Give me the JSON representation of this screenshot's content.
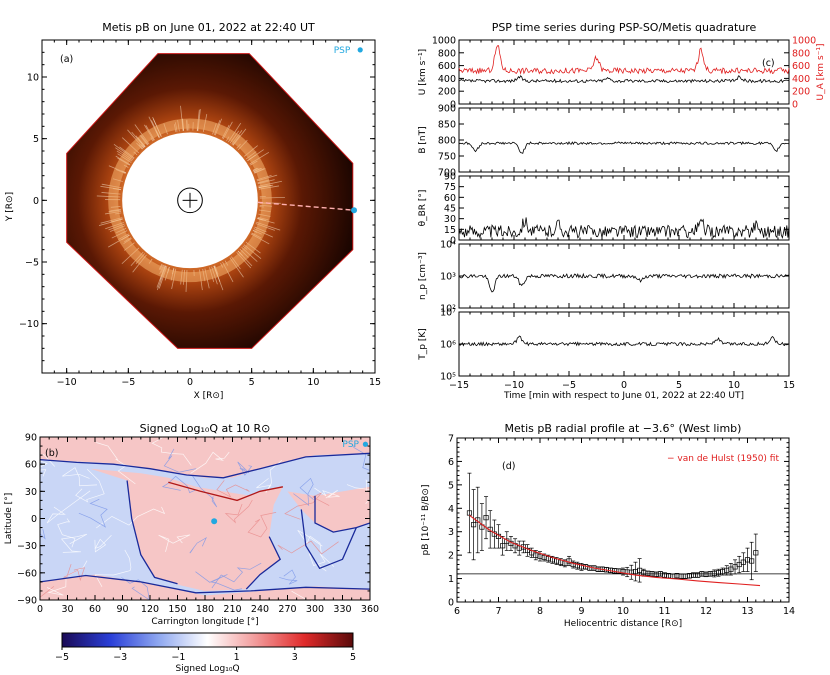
{
  "chart_data": [
    {
      "id": "a",
      "type": "image",
      "panel_label": "(a)",
      "title": "Metis pB on June 01, 2022 at 22:40 UT",
      "xlabel": "X [R⊙]",
      "ylabel": "Y [R⊙]",
      "xlim": [
        -12,
        15
      ],
      "ylim": [
        -14,
        13
      ],
      "xticks": [
        -10,
        -5,
        0,
        5,
        10,
        15
      ],
      "yticks": [
        -10,
        -5,
        0,
        5,
        10
      ],
      "marker_label": "PSP",
      "psp_position": [
        13.3,
        -0.8
      ],
      "occulter_radius": 5.5,
      "sun_radius": 1,
      "fov_polygon": [
        [
          -10.0,
          3.8
        ],
        [
          -2.6,
          11.9
        ],
        [
          4.8,
          11.9
        ],
        [
          13.2,
          3.0
        ],
        [
          13.2,
          -4.0
        ],
        [
          5.0,
          -12.0
        ],
        [
          -1.0,
          -12.0
        ],
        [
          -10.0,
          -3.4
        ]
      ]
    },
    {
      "id": "c",
      "type": "line",
      "panel_label": "(c)",
      "title": "PSP time series during PSP-SO/Metis quadrature",
      "xlabel": "Time [min with respect to June 01, 2022 at 22:40 UT]",
      "xlim": [
        -15,
        15
      ],
      "xticks": [
        -15,
        -10,
        -5,
        0,
        5,
        10,
        15
      ],
      "subplots": [
        {
          "name": "speed",
          "ylabel": "U [km s⁻¹]",
          "ylabel_right": "U_A [km s⁻¹]",
          "ylim": [
            0,
            1000
          ],
          "yticks": [
            0,
            200,
            400,
            600,
            800,
            1000
          ],
          "series": [
            {
              "name": "U",
              "color": "#000000",
              "base": 360,
              "noise": 25,
              "events": [
                [
                  -9.5,
                  60
                ],
                [
                  -1.5,
                  40
                ],
                [
                  10.5,
                  60
                ]
              ]
            },
            {
              "name": "U_A",
              "color": "#e02020",
              "base": 520,
              "noise": 45,
              "events": [
                [
                  -11.5,
                  380
                ],
                [
                  -2.5,
                  200
                ],
                [
                  7,
                  320
                ]
              ]
            }
          ]
        },
        {
          "name": "field",
          "ylabel": "B [nT]",
          "ylim": [
            700,
            900
          ],
          "yticks": [
            700,
            750,
            800,
            850,
            900
          ],
          "series": [
            {
              "name": "B",
              "color": "#000000",
              "base": 790,
              "noise": 4,
              "events": [
                [
                  -13.5,
                  -25
                ],
                [
                  -9.3,
                  -30
                ],
                [
                  13.8,
                  -25
                ]
              ]
            }
          ]
        },
        {
          "name": "angle",
          "ylabel": "θ_BR [°]",
          "ylim": [
            0,
            90
          ],
          "yticks": [
            0,
            15,
            30,
            45,
            60,
            75,
            90
          ],
          "series": [
            {
              "name": "theta_BR",
              "color": "#000000",
              "base": 12,
              "noise": 9,
              "events": [
                [
                  -9,
                  15
                ],
                [
                  -6,
                  10
                ],
                [
                  7,
                  12
                ],
                [
                  12,
                  10
                ]
              ]
            }
          ]
        },
        {
          "name": "density",
          "ylabel": "n_p [cm⁻³]",
          "log": true,
          "ylim": [
            100,
            10000
          ],
          "yticks": [
            100,
            1000,
            10000
          ],
          "tick_labels": [
            "10²",
            "10³",
            "10⁴"
          ],
          "series": [
            {
              "name": "n_p",
              "color": "#000000",
              "base": 1000,
              "noise": 0.06,
              "events": [
                [
                  -12,
                  -0.5
                ],
                [
                  -9.3,
                  -0.3
                ],
                [
                  1.5,
                  -0.15
                ]
              ]
            }
          ]
        },
        {
          "name": "temperature",
          "ylabel": "T_p [K]",
          "log": true,
          "ylim": [
            100000,
            10000000
          ],
          "yticks": [
            100000,
            1000000,
            10000000
          ],
          "tick_labels": [
            "10⁵",
            "10⁶",
            "10⁷"
          ],
          "series": [
            {
              "name": "T_p",
              "color": "#000000",
              "base": 1000000,
              "noise": 0.05,
              "events": [
                [
                  -9.5,
                  0.2
                ],
                [
                  8.5,
                  0.15
                ],
                [
                  13.5,
                  0.2
                ]
              ]
            }
          ]
        }
      ]
    },
    {
      "id": "b",
      "type": "heatmap",
      "panel_label": "(b)",
      "title": "Signed Log₁₀Q at 10 R⊙",
      "xlabel": "Carrington longitude [°]",
      "ylabel": "Latitude [°]",
      "xlim": [
        0,
        360
      ],
      "ylim": [
        -90,
        90
      ],
      "xticks": [
        0,
        30,
        60,
        90,
        120,
        150,
        180,
        210,
        240,
        270,
        300,
        330,
        360
      ],
      "yticks": [
        -90,
        -60,
        -30,
        0,
        30,
        60,
        90
      ],
      "marker_label": "PSP",
      "psp_position": [
        190,
        -3
      ],
      "colorbar": {
        "label": "Signed Log₁₀Q",
        "ticks": [
          -5,
          -3,
          -1,
          1,
          3,
          5
        ],
        "range": [
          -5,
          5
        ],
        "colors": [
          "#1a0a55",
          "#2a3fd8",
          "#8fa8f0",
          "#ffffff",
          "#f29a9a",
          "#e02a2a",
          "#5a0a0a"
        ]
      }
    },
    {
      "id": "d",
      "type": "scatter",
      "panel_label": "(d)",
      "title": "Metis pB radial profile at −3.6° (West limb)",
      "xlabel": "Heliocentric distance [R⊙]",
      "ylabel": "pB [10⁻¹¹ B/B⊙]",
      "xlim": [
        6,
        14
      ],
      "ylim": [
        0,
        7
      ],
      "xticks": [
        6,
        7,
        8,
        9,
        10,
        11,
        12,
        13,
        14
      ],
      "yticks": [
        0,
        1,
        2,
        3,
        4,
        5,
        6,
        7
      ],
      "legend": "− van de Hulst (1950) fit",
      "baseline": 1.2,
      "x": [
        6.3,
        6.4,
        6.5,
        6.6,
        6.7,
        6.8,
        6.9,
        7.0,
        7.1,
        7.2,
        7.3,
        7.4,
        7.5,
        7.6,
        7.7,
        7.8,
        7.9,
        8.0,
        8.1,
        8.2,
        8.3,
        8.4,
        8.5,
        8.6,
        8.7,
        8.8,
        8.9,
        9.0,
        9.1,
        9.2,
        9.3,
        9.4,
        9.5,
        9.6,
        9.7,
        9.8,
        9.9,
        10.0,
        10.1,
        10.2,
        10.3,
        10.4,
        10.5,
        10.6,
        10.7,
        10.8,
        10.9,
        11.0,
        11.1,
        11.2,
        11.3,
        11.4,
        11.5,
        11.6,
        11.7,
        11.8,
        11.9,
        12.0,
        12.1,
        12.2,
        12.3,
        12.4,
        12.5,
        12.6,
        12.7,
        12.8,
        12.9,
        13.0,
        13.1,
        13.2
      ],
      "y": [
        3.8,
        3.3,
        3.5,
        3.2,
        3.6,
        3.1,
        2.9,
        2.8,
        2.4,
        2.6,
        2.5,
        2.4,
        2.3,
        2.35,
        2.2,
        2.1,
        2.0,
        1.95,
        1.9,
        1.85,
        1.8,
        1.75,
        1.7,
        1.65,
        1.75,
        1.6,
        1.55,
        1.5,
        1.5,
        1.45,
        1.45,
        1.4,
        1.4,
        1.38,
        1.35,
        1.33,
        1.32,
        1.3,
        1.28,
        1.27,
        1.3,
        1.35,
        1.25,
        1.22,
        1.2,
        1.18,
        1.2,
        1.15,
        1.12,
        1.1,
        1.12,
        1.1,
        1.1,
        1.12,
        1.15,
        1.15,
        1.2,
        1.18,
        1.2,
        1.22,
        1.25,
        1.3,
        1.35,
        1.4,
        1.5,
        1.6,
        1.7,
        1.8,
        1.75,
        2.1
      ],
      "err": [
        1.7,
        1.5,
        1.4,
        1.0,
        0.9,
        0.8,
        0.6,
        0.5,
        0.4,
        0.4,
        0.3,
        0.3,
        0.3,
        0.25,
        0.25,
        0.2,
        0.2,
        0.2,
        0.15,
        0.15,
        0.15,
        0.15,
        0.15,
        0.15,
        0.2,
        0.15,
        0.15,
        0.15,
        0.1,
        0.1,
        0.1,
        0.1,
        0.1,
        0.1,
        0.1,
        0.1,
        0.1,
        0.15,
        0.2,
        0.3,
        0.4,
        0.5,
        0.15,
        0.1,
        0.1,
        0.1,
        0.1,
        0.1,
        0.1,
        0.1,
        0.1,
        0.1,
        0.1,
        0.1,
        0.1,
        0.1,
        0.1,
        0.1,
        0.1,
        0.15,
        0.15,
        0.15,
        0.2,
        0.25,
        0.3,
        0.35,
        0.4,
        0.5,
        0.8,
        0.8
      ],
      "fit": {
        "name": "van de Hulst (1950) fit",
        "color": "#e02020",
        "x": [
          6.3,
          6.8,
          7.3,
          7.8,
          8.3,
          8.8,
          9.3,
          9.8,
          10.3,
          10.8,
          11.3,
          11.8,
          12.3,
          12.8,
          13.3
        ],
        "y": [
          3.7,
          3.05,
          2.55,
          2.2,
          1.9,
          1.65,
          1.45,
          1.3,
          1.15,
          1.05,
          0.98,
          0.9,
          0.83,
          0.77,
          0.7
        ]
      }
    }
  ]
}
